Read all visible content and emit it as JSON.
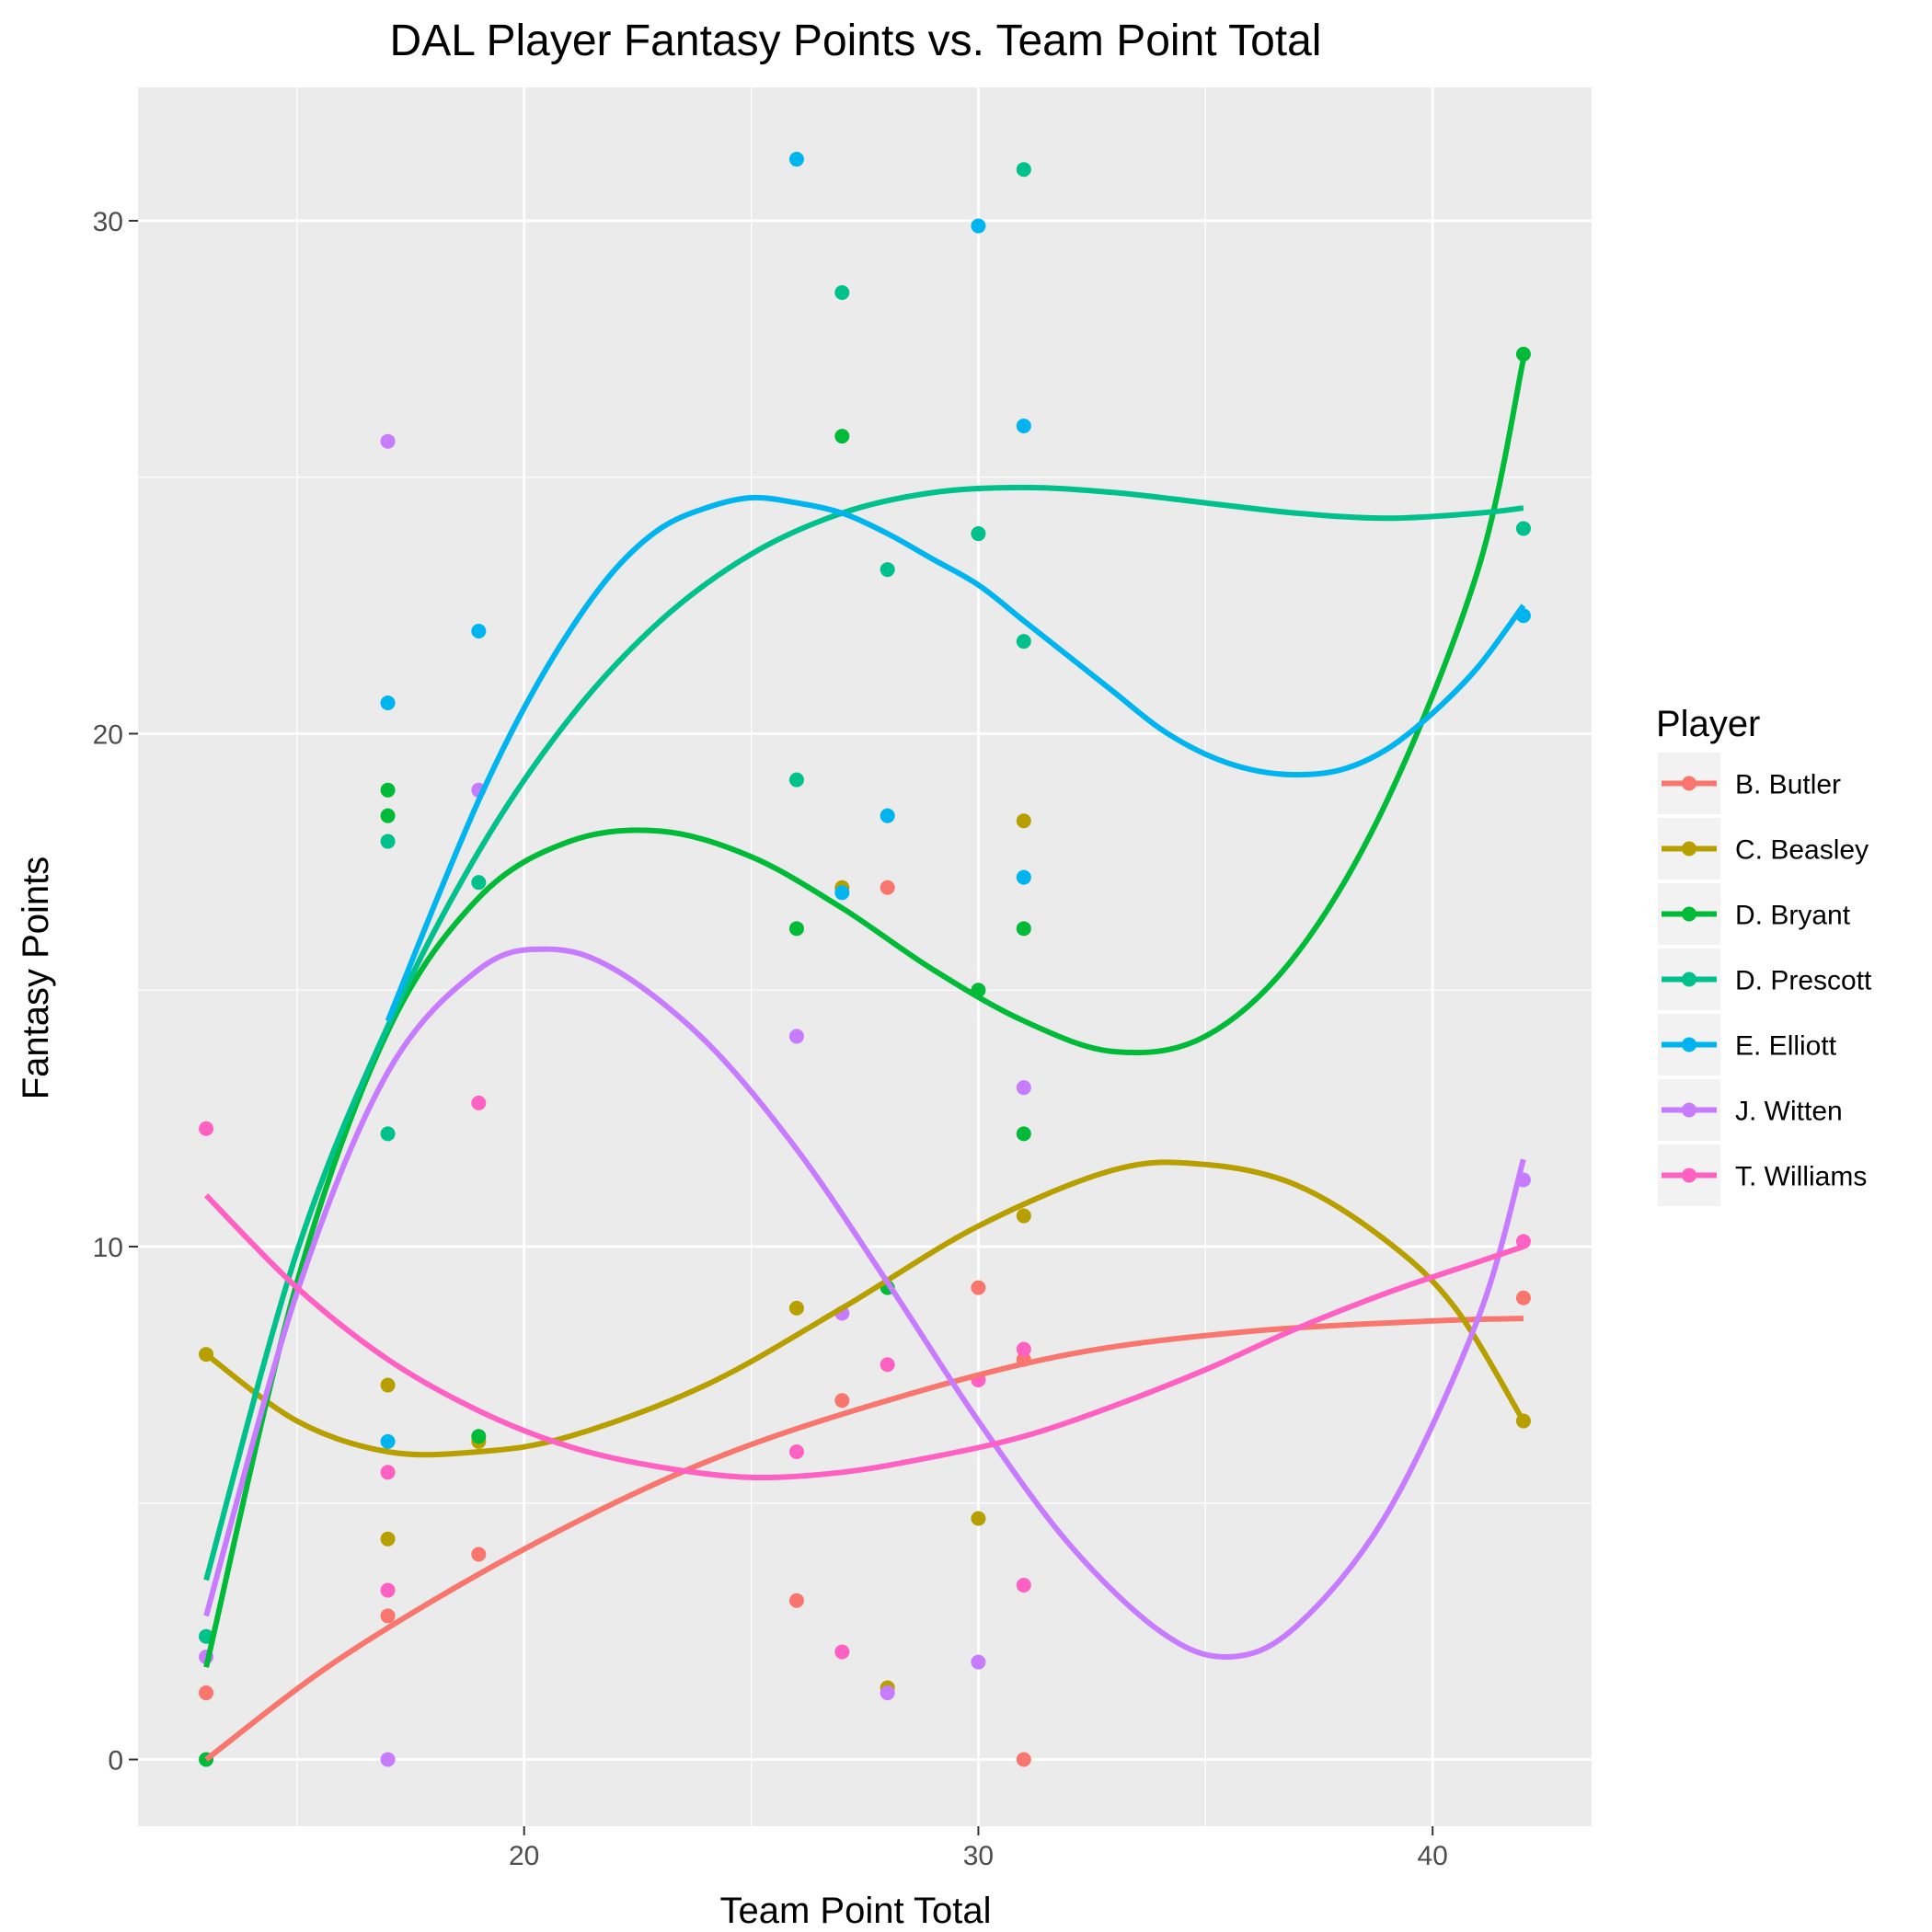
{
  "chart_data": {
    "type": "scatter",
    "title": "DAL Player Fantasy Points vs. Team Point Total",
    "xlabel": "Team Point Total",
    "ylabel": "Fantasy Points",
    "xlim": [
      11.5,
      43.5
    ],
    "ylim": [
      -1.3,
      32.6
    ],
    "x_ticks": [
      20,
      30,
      40
    ],
    "x_minor": [
      15,
      25,
      35
    ],
    "y_ticks": [
      0,
      10,
      20,
      30
    ],
    "y_minor": [
      5,
      15,
      25
    ],
    "grid": true,
    "background": "#ebebeb",
    "legend": {
      "title": "Player",
      "position": "right"
    },
    "series": [
      {
        "name": "B. Butler",
        "color": "#F8766D",
        "points": [
          [
            13,
            1.3
          ],
          [
            17,
            2.8
          ],
          [
            19,
            4.0
          ],
          [
            26,
            3.1
          ],
          [
            27,
            7.0
          ],
          [
            28,
            17.0
          ],
          [
            30,
            9.2
          ],
          [
            31,
            7.8
          ],
          [
            31,
            0.0
          ],
          [
            42,
            9.0
          ]
        ],
        "smooth": [
          [
            13,
            0.0
          ],
          [
            16,
            2.0
          ],
          [
            20,
            4.1
          ],
          [
            24,
            5.8
          ],
          [
            28,
            7.0
          ],
          [
            32,
            7.9
          ],
          [
            36,
            8.35
          ],
          [
            40,
            8.55
          ],
          [
            42,
            8.6
          ]
        ]
      },
      {
        "name": "C. Beasley",
        "color": "#B79F00",
        "points": [
          [
            13,
            7.9
          ],
          [
            17,
            7.3
          ],
          [
            17,
            4.3
          ],
          [
            19,
            6.2
          ],
          [
            26,
            8.8
          ],
          [
            27,
            17.0
          ],
          [
            28,
            1.4
          ],
          [
            30,
            4.7
          ],
          [
            31,
            18.3
          ],
          [
            31,
            10.6
          ],
          [
            42,
            6.6
          ]
        ],
        "smooth": [
          [
            13,
            7.9
          ],
          [
            15,
            6.6
          ],
          [
            17,
            6.0
          ],
          [
            19,
            6.0
          ],
          [
            21,
            6.3
          ],
          [
            24,
            7.3
          ],
          [
            27,
            8.8
          ],
          [
            30,
            10.4
          ],
          [
            33,
            11.5
          ],
          [
            35,
            11.6
          ],
          [
            37,
            11.2
          ],
          [
            39,
            10.1
          ],
          [
            40.5,
            8.8
          ],
          [
            42,
            6.6
          ]
        ]
      },
      {
        "name": "D. Bryant",
        "color": "#00BA38",
        "points": [
          [
            13,
            0.0
          ],
          [
            17,
            18.9
          ],
          [
            17,
            18.4
          ],
          [
            19,
            6.3
          ],
          [
            26,
            16.2
          ],
          [
            27,
            25.8
          ],
          [
            28,
            9.2
          ],
          [
            30,
            15.0
          ],
          [
            31,
            16.2
          ],
          [
            31,
            12.2
          ],
          [
            42,
            27.4
          ]
        ],
        "smooth": [
          [
            13,
            1.8
          ],
          [
            15,
            9.3
          ],
          [
            17,
            14.2
          ],
          [
            19,
            16.8
          ],
          [
            21,
            17.9
          ],
          [
            23,
            18.1
          ],
          [
            25,
            17.6
          ],
          [
            27,
            16.6
          ],
          [
            29,
            15.4
          ],
          [
            31,
            14.4
          ],
          [
            33,
            13.8
          ],
          [
            35,
            14.1
          ],
          [
            37,
            15.7
          ],
          [
            39,
            18.7
          ],
          [
            41,
            23.2
          ],
          [
            42,
            27.3
          ]
        ]
      },
      {
        "name": "D. Prescott",
        "color": "#00C08B",
        "points": [
          [
            13,
            2.4
          ],
          [
            17,
            17.9
          ],
          [
            17,
            12.2
          ],
          [
            19,
            17.1
          ],
          [
            26,
            19.1
          ],
          [
            27,
            28.6
          ],
          [
            28,
            23.2
          ],
          [
            30,
            23.9
          ],
          [
            31,
            31.0
          ],
          [
            31,
            21.8
          ],
          [
            42,
            24.0
          ]
        ],
        "smooth": [
          [
            13,
            3.5
          ],
          [
            15,
            9.9
          ],
          [
            17,
            14.3
          ],
          [
            19,
            17.7
          ],
          [
            21,
            20.3
          ],
          [
            23,
            22.2
          ],
          [
            25,
            23.5
          ],
          [
            27,
            24.3
          ],
          [
            29,
            24.7
          ],
          [
            31,
            24.8
          ],
          [
            33,
            24.7
          ],
          [
            35,
            24.5
          ],
          [
            37,
            24.3
          ],
          [
            39,
            24.2
          ],
          [
            41,
            24.3
          ],
          [
            42,
            24.4
          ]
        ]
      },
      {
        "name": "E. Elliott",
        "color": "#00B4F0",
        "points": [
          [
            17,
            20.6
          ],
          [
            17,
            6.2
          ],
          [
            19,
            22.0
          ],
          [
            26,
            31.2
          ],
          [
            27,
            16.9
          ],
          [
            28,
            18.4
          ],
          [
            30,
            29.9
          ],
          [
            31,
            26.0
          ],
          [
            31,
            17.2
          ],
          [
            42,
            22.3
          ]
        ],
        "smooth": [
          [
            17,
            14.4
          ],
          [
            18,
            16.6
          ],
          [
            19,
            18.7
          ],
          [
            20,
            20.5
          ],
          [
            21,
            22.0
          ],
          [
            22,
            23.2
          ],
          [
            23,
            24.0
          ],
          [
            24,
            24.4
          ],
          [
            25,
            24.6
          ],
          [
            26,
            24.5
          ],
          [
            27,
            24.3
          ],
          [
            28,
            23.9
          ],
          [
            29,
            23.4
          ],
          [
            30,
            22.9
          ],
          [
            31,
            22.2
          ],
          [
            32,
            21.5
          ],
          [
            33,
            20.8
          ],
          [
            34,
            20.1
          ],
          [
            35,
            19.6
          ],
          [
            36,
            19.3
          ],
          [
            37,
            19.2
          ],
          [
            38,
            19.3
          ],
          [
            39,
            19.7
          ],
          [
            40,
            20.4
          ],
          [
            41,
            21.3
          ],
          [
            42,
            22.5
          ]
        ]
      },
      {
        "name": "J. Witten",
        "color": "#C77CFF",
        "points": [
          [
            13,
            2.0
          ],
          [
            17,
            25.7
          ],
          [
            17,
            0.0
          ],
          [
            19,
            18.9
          ],
          [
            26,
            14.1
          ],
          [
            27,
            8.7
          ],
          [
            28,
            1.3
          ],
          [
            30,
            1.9
          ],
          [
            31,
            13.1
          ],
          [
            42,
            11.3
          ]
        ],
        "smooth": [
          [
            13,
            2.8
          ],
          [
            15,
            9.1
          ],
          [
            17,
            13.4
          ],
          [
            19,
            15.4
          ],
          [
            20.5,
            15.8
          ],
          [
            22,
            15.4
          ],
          [
            24,
            14.0
          ],
          [
            26,
            11.9
          ],
          [
            28,
            9.3
          ],
          [
            30,
            6.6
          ],
          [
            32,
            4.2
          ],
          [
            34,
            2.5
          ],
          [
            35.5,
            2.0
          ],
          [
            37,
            2.6
          ],
          [
            39,
            4.8
          ],
          [
            41,
            8.6
          ],
          [
            42,
            11.7
          ]
        ]
      },
      {
        "name": "T. Williams",
        "color": "#FF61C3",
        "points": [
          [
            13,
            12.3
          ],
          [
            17,
            5.6
          ],
          [
            17,
            3.3
          ],
          [
            19,
            12.8
          ],
          [
            26,
            6.0
          ],
          [
            27,
            2.1
          ],
          [
            28,
            7.7
          ],
          [
            30,
            7.4
          ],
          [
            31,
            8.0
          ],
          [
            31,
            3.4
          ],
          [
            42,
            10.1
          ]
        ],
        "smooth": [
          [
            13,
            11.0
          ],
          [
            15,
            9.2
          ],
          [
            17,
            7.8
          ],
          [
            19,
            6.8
          ],
          [
            21,
            6.1
          ],
          [
            23,
            5.7
          ],
          [
            25,
            5.5
          ],
          [
            27,
            5.6
          ],
          [
            29,
            5.9
          ],
          [
            31,
            6.3
          ],
          [
            33,
            6.9
          ],
          [
            35,
            7.6
          ],
          [
            37,
            8.4
          ],
          [
            39,
            9.1
          ],
          [
            41,
            9.7
          ],
          [
            42,
            10.0
          ]
        ]
      }
    ]
  }
}
